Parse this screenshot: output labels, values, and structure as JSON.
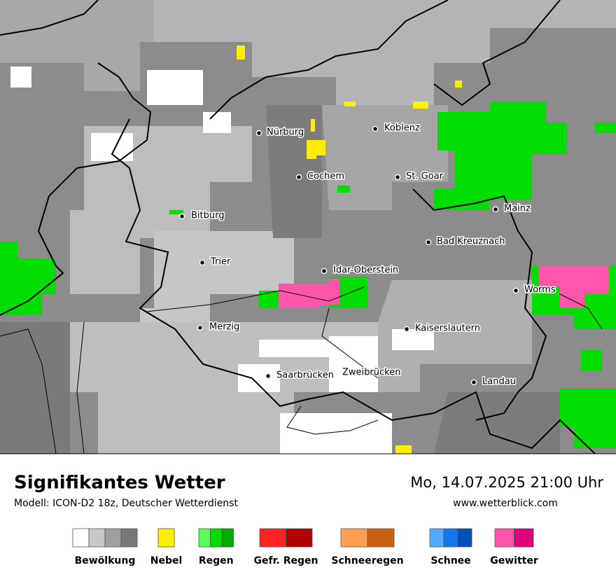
{
  "map": {
    "cities": [
      {
        "name": "Nürburg"
      },
      {
        "name": "Koblenz"
      },
      {
        "name": "Cochem"
      },
      {
        "name": "St. Goar"
      },
      {
        "name": "Bitburg"
      },
      {
        "name": "Mainz"
      },
      {
        "name": "Trier"
      },
      {
        "name": "Bad Kreuznach"
      },
      {
        "name": "Idar-Oberstein"
      },
      {
        "name": "Worms"
      },
      {
        "name": "Merzig"
      },
      {
        "name": "Kaiserslautern"
      },
      {
        "name": "Saarbrücken"
      },
      {
        "name": "Zweibrücken"
      },
      {
        "name": "Landau"
      }
    ]
  },
  "footer": {
    "title": "Signifikantes Wetter",
    "model": "Modell: ICON-D2 18z, Deutscher Wetterdienst",
    "datetime": "Mo, 14.07.2025 21:00 Uhr",
    "website": "www.wetterblick.com"
  },
  "legend": [
    {
      "label": "Bewölkung",
      "colors": [
        "#ffffff",
        "#c8c8c8",
        "#a0a0a0",
        "#787878"
      ]
    },
    {
      "label": "Nebel",
      "colors": [
        "#ffee00"
      ]
    },
    {
      "label": "Regen",
      "colors": [
        "#55ff55",
        "#00dd00",
        "#00aa00"
      ]
    },
    {
      "label": "Gefr. Regen",
      "colors": [
        "#ff2222",
        "#b00000"
      ]
    },
    {
      "label": "Schneeregen",
      "colors": [
        "#ffa050",
        "#cc6010"
      ]
    },
    {
      "label": "Schnee",
      "colors": [
        "#55aaff",
        "#1177ee",
        "#0050bb"
      ]
    },
    {
      "label": "Gewitter",
      "colors": [
        "#ff55aa",
        "#e0007a"
      ]
    }
  ]
}
